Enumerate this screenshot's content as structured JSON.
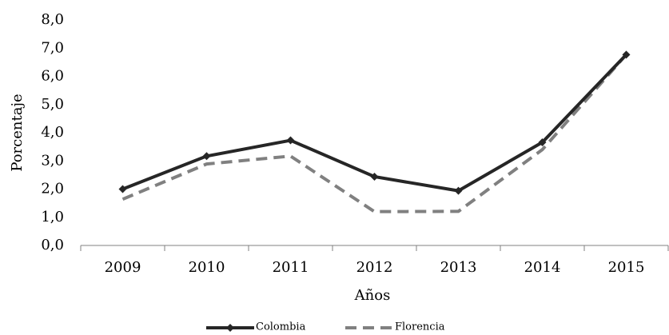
{
  "chart_data": {
    "type": "line",
    "xlabel": "Años",
    "ylabel": "Porcentaje",
    "categories": [
      "2009",
      "2010",
      "2011",
      "2012",
      "2013",
      "2014",
      "2015"
    ],
    "series": [
      {
        "name": "Colombia",
        "color": "#262626",
        "dash": false,
        "values": [
          2.0,
          3.17,
          3.73,
          2.44,
          1.94,
          3.66,
          6.77
        ]
      },
      {
        "name": "Florencia",
        "color": "#808080",
        "dash": true,
        "values": [
          1.64,
          2.89,
          3.17,
          1.2,
          1.21,
          3.4,
          6.77
        ]
      }
    ],
    "ylim": [
      0,
      8
    ],
    "yticks": [
      {
        "value": 0,
        "label": "0,0"
      },
      {
        "value": 1,
        "label": "1,0"
      },
      {
        "value": 2,
        "label": "2,0"
      },
      {
        "value": 3,
        "label": "3,0"
      },
      {
        "value": 4,
        "label": "4,0"
      },
      {
        "value": 5,
        "label": "5,0"
      },
      {
        "value": 6,
        "label": "6,0"
      },
      {
        "value": 7,
        "label": "7,0"
      },
      {
        "value": 8,
        "label": "8,0"
      }
    ],
    "grid": false,
    "legend": "bottom"
  }
}
